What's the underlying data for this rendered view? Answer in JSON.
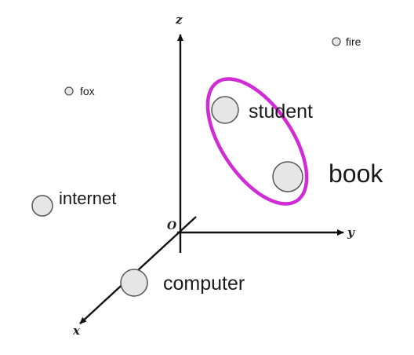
{
  "axes": {
    "x": "x",
    "y": "y",
    "z": "z",
    "origin": "O"
  },
  "points": [
    {
      "label": "fire"
    },
    {
      "label": "fox"
    },
    {
      "label": "student"
    },
    {
      "label": "book"
    },
    {
      "label": "internet"
    },
    {
      "label": "computer"
    }
  ],
  "colors": {
    "axis": "#111111",
    "point_fill": "#e6e6e6",
    "point_stroke": "#555555",
    "highlight": "#d12bd6"
  }
}
